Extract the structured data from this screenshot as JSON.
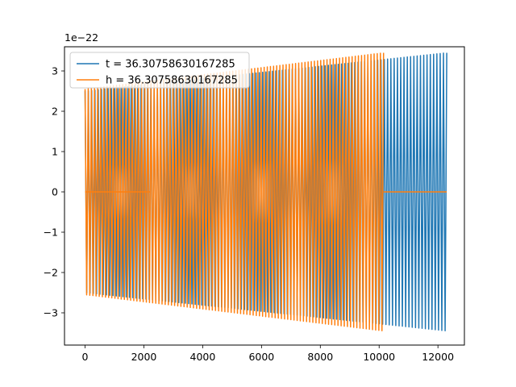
{
  "chart_data": {
    "type": "line",
    "title": "",
    "xlabel": "",
    "ylabel": "",
    "y_offset_label": "1e−22",
    "xlim": [
      -700,
      12900
    ],
    "ylim": [
      -3.8,
      3.6
    ],
    "xticks": [
      0,
      2000,
      4000,
      6000,
      8000,
      10000,
      12000
    ],
    "xtick_labels": [
      "0",
      "2000",
      "4000",
      "6000",
      "8000",
      "10000",
      "12000"
    ],
    "yticks": [
      -3,
      -2,
      -1,
      0,
      1,
      2,
      3
    ],
    "ytick_labels": [
      "−3",
      "−2",
      "−1",
      "0",
      "1",
      "2",
      "3"
    ],
    "grid": false,
    "legend_position": "top-left",
    "series": [
      {
        "name": "t = 36.30758630167285",
        "color": "#1f77b4",
        "segments": [
          {
            "kind": "oscillation",
            "x_start": 0,
            "x_end": 12300,
            "amp_start": 2.5,
            "amp_end": 3.45,
            "cycles": 110
          }
        ]
      },
      {
        "name": "h = 36.30758630167285",
        "color": "#ff7f0e",
        "segments": [
          {
            "kind": "flat",
            "x_start": 0,
            "x_end": 2200,
            "value": 0
          },
          {
            "kind": "oscillation",
            "x_start": 0,
            "x_end": 10150,
            "amp_start": 2.55,
            "amp_end": 3.45,
            "cycles": 95
          },
          {
            "kind": "flat",
            "x_start": 10150,
            "x_end": 12300,
            "value": 0
          }
        ]
      }
    ]
  }
}
